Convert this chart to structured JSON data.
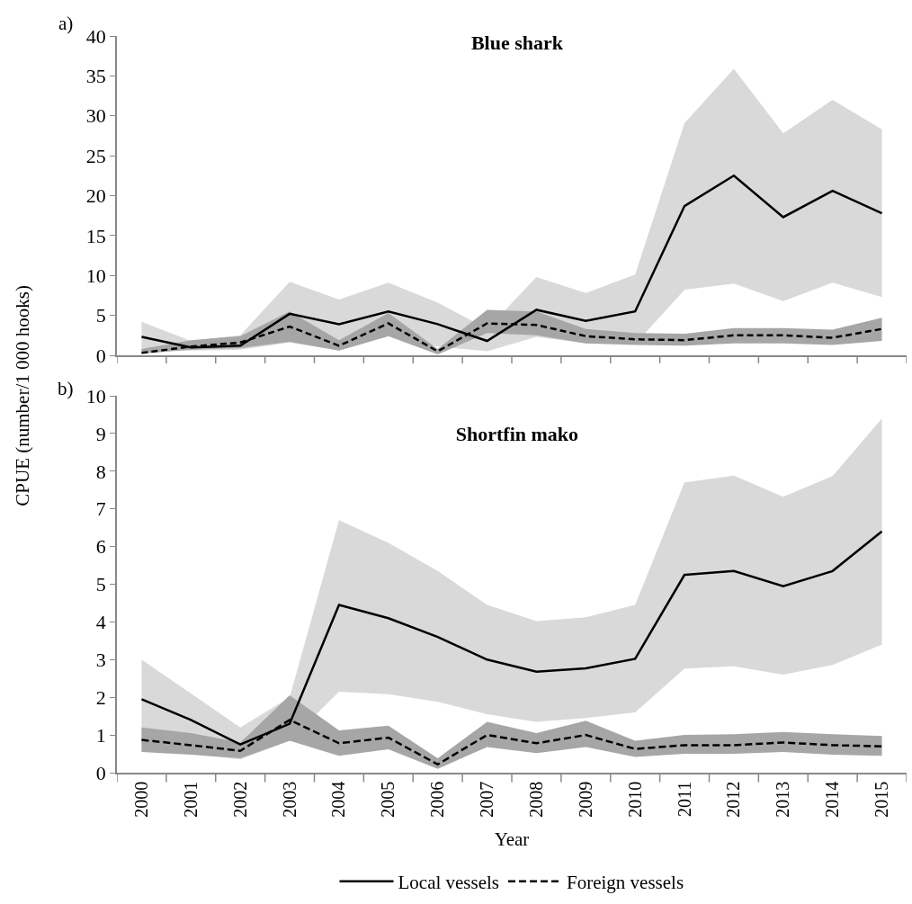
{
  "chart_data": [
    {
      "type": "line",
      "title": "Blue shark",
      "annotations": [
        "a)"
      ],
      "categories": [
        "2000",
        "2001",
        "2002",
        "2003",
        "2004",
        "2005",
        "2006",
        "2007",
        "2008",
        "2009",
        "2010",
        "2011",
        "2012",
        "2013",
        "2014",
        "2015"
      ],
      "ylim": [
        0,
        40
      ],
      "yticks": [
        0,
        5,
        10,
        15,
        20,
        25,
        30,
        35,
        40
      ],
      "grid": false,
      "legend": false,
      "tick_labels": "y",
      "series": [
        {
          "color": "#000000",
          "line_style": "solid",
          "values": [
            2.3,
            1.0,
            1.2,
            5.2,
            3.9,
            5.5,
            3.9,
            1.8,
            5.7,
            4.3,
            5.5,
            18.7,
            22.5,
            17.3,
            20.6,
            17.8
          ],
          "lower": [
            0.5,
            0.6,
            0.7,
            1.6,
            0.6,
            2.4,
            1.1,
            0.5,
            2.3,
            1.5,
            1.4,
            8.2,
            9.0,
            6.8,
            9.1,
            7.3
          ],
          "upper": [
            4.2,
            1.8,
            2.5,
            9.2,
            7.0,
            9.1,
            6.6,
            3.3,
            9.8,
            7.8,
            10.1,
            29.1,
            35.9,
            27.8,
            32.0,
            28.3
          ]
        },
        {
          "color": "#000000",
          "line_style": "dashed",
          "values": [
            0.3,
            1.1,
            1.6,
            3.6,
            1.2,
            4.0,
            0.5,
            4.0,
            3.8,
            2.4,
            2.0,
            1.9,
            2.5,
            2.5,
            2.2,
            3.3
          ],
          "lower": [
            0.2,
            0.7,
            0.9,
            1.7,
            0.6,
            2.4,
            0.1,
            2.8,
            2.5,
            1.5,
            1.3,
            1.2,
            1.5,
            1.5,
            1.3,
            1.8
          ],
          "upper": [
            0.8,
            1.9,
            2.4,
            5.5,
            1.9,
            5.3,
            0.8,
            5.7,
            5.5,
            3.3,
            2.8,
            2.7,
            3.4,
            3.4,
            3.2,
            4.7
          ]
        }
      ]
    },
    {
      "type": "line",
      "title": "Shortfin mako",
      "annotations": [
        "b)"
      ],
      "xlabel": "Year",
      "ylabel": "CPUE (number/1 000 hooks)",
      "categories": [
        "2000",
        "2001",
        "2002",
        "2003",
        "2004",
        "2005",
        "2006",
        "2007",
        "2008",
        "2009",
        "2010",
        "2011",
        "2012",
        "2013",
        "2014",
        "2015"
      ],
      "ylim": [
        0,
        10
      ],
      "yticks": [
        0,
        1,
        2,
        3,
        4,
        5,
        6,
        7,
        8,
        9,
        10
      ],
      "grid": false,
      "legend": "bottom",
      "series": [
        {
          "name": "Local vessels",
          "color": "#000000",
          "line_style": "solid",
          "values": [
            1.95,
            1.4,
            0.75,
            1.3,
            4.45,
            4.1,
            3.6,
            3.0,
            2.68,
            2.77,
            3.02,
            5.25,
            5.35,
            4.95,
            5.35,
            6.4
          ],
          "lower": [
            0.6,
            0.5,
            0.35,
            0.85,
            2.15,
            2.08,
            1.88,
            1.55,
            1.35,
            1.45,
            1.6,
            2.76,
            2.82,
            2.6,
            2.86,
            3.4
          ],
          "upper": [
            3.0,
            2.1,
            1.2,
            2.0,
            6.7,
            6.1,
            5.35,
            4.45,
            4.02,
            4.12,
            4.45,
            7.7,
            7.88,
            7.32,
            7.87,
            9.4
          ]
        },
        {
          "name": "Foreign vessels",
          "color": "#000000",
          "line_style": "dashed",
          "values": [
            0.87,
            0.73,
            0.58,
            1.4,
            0.78,
            0.93,
            0.22,
            1.0,
            0.78,
            1.0,
            0.63,
            0.73,
            0.73,
            0.8,
            0.73,
            0.7
          ],
          "lower": [
            0.55,
            0.48,
            0.38,
            0.85,
            0.45,
            0.62,
            0.1,
            0.68,
            0.52,
            0.68,
            0.42,
            0.5,
            0.5,
            0.55,
            0.48,
            0.45
          ],
          "upper": [
            1.2,
            1.05,
            0.8,
            2.05,
            1.12,
            1.25,
            0.38,
            1.35,
            1.05,
            1.38,
            0.85,
            1.0,
            1.02,
            1.08,
            1.02,
            0.97
          ]
        }
      ]
    }
  ]
}
